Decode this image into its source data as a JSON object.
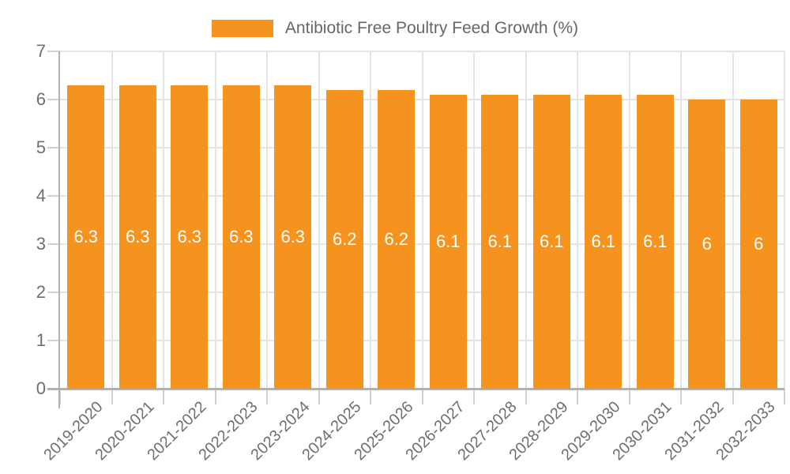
{
  "chart_data": {
    "type": "bar",
    "title": "",
    "legend_label": "Antibiotic Free Poultry Feed Growth (%)",
    "legend_position": "top-center",
    "categories": [
      "2019-2020",
      "2020-2021",
      "2021-2022",
      "2022-2023",
      "2023-2024",
      "2024-2025",
      "2025-2026",
      "2026-2027",
      "2027-2028",
      "2028-2029",
      "2029-2030",
      "2030-2031",
      "2031-2032",
      "2032-2033"
    ],
    "values": [
      6.3,
      6.3,
      6.3,
      6.3,
      6.3,
      6.2,
      6.2,
      6.1,
      6.1,
      6.1,
      6.1,
      6.1,
      6,
      6
    ],
    "value_labels": [
      "6.3",
      "6.3",
      "6.3",
      "6.3",
      "6.3",
      "6.2",
      "6.2",
      "6.1",
      "6.1",
      "6.1",
      "6.1",
      "6.1",
      "6",
      "6"
    ],
    "xlabel": "",
    "ylabel": "",
    "ylim": [
      0,
      7
    ],
    "yticks": [
      0,
      1,
      2,
      3,
      4,
      5,
      6,
      7
    ],
    "grid_on": true,
    "x_label_rotation": -45,
    "colors": {
      "bar": "#F6921E",
      "value_label": "#ffffff",
      "gridline": "#e4e4e4",
      "axis_line": "#b1b1b1",
      "tick": "#d2d2d2",
      "axis_text": "#6f6f6f",
      "legend_text": "#666666",
      "background": "#ffffff"
    }
  }
}
